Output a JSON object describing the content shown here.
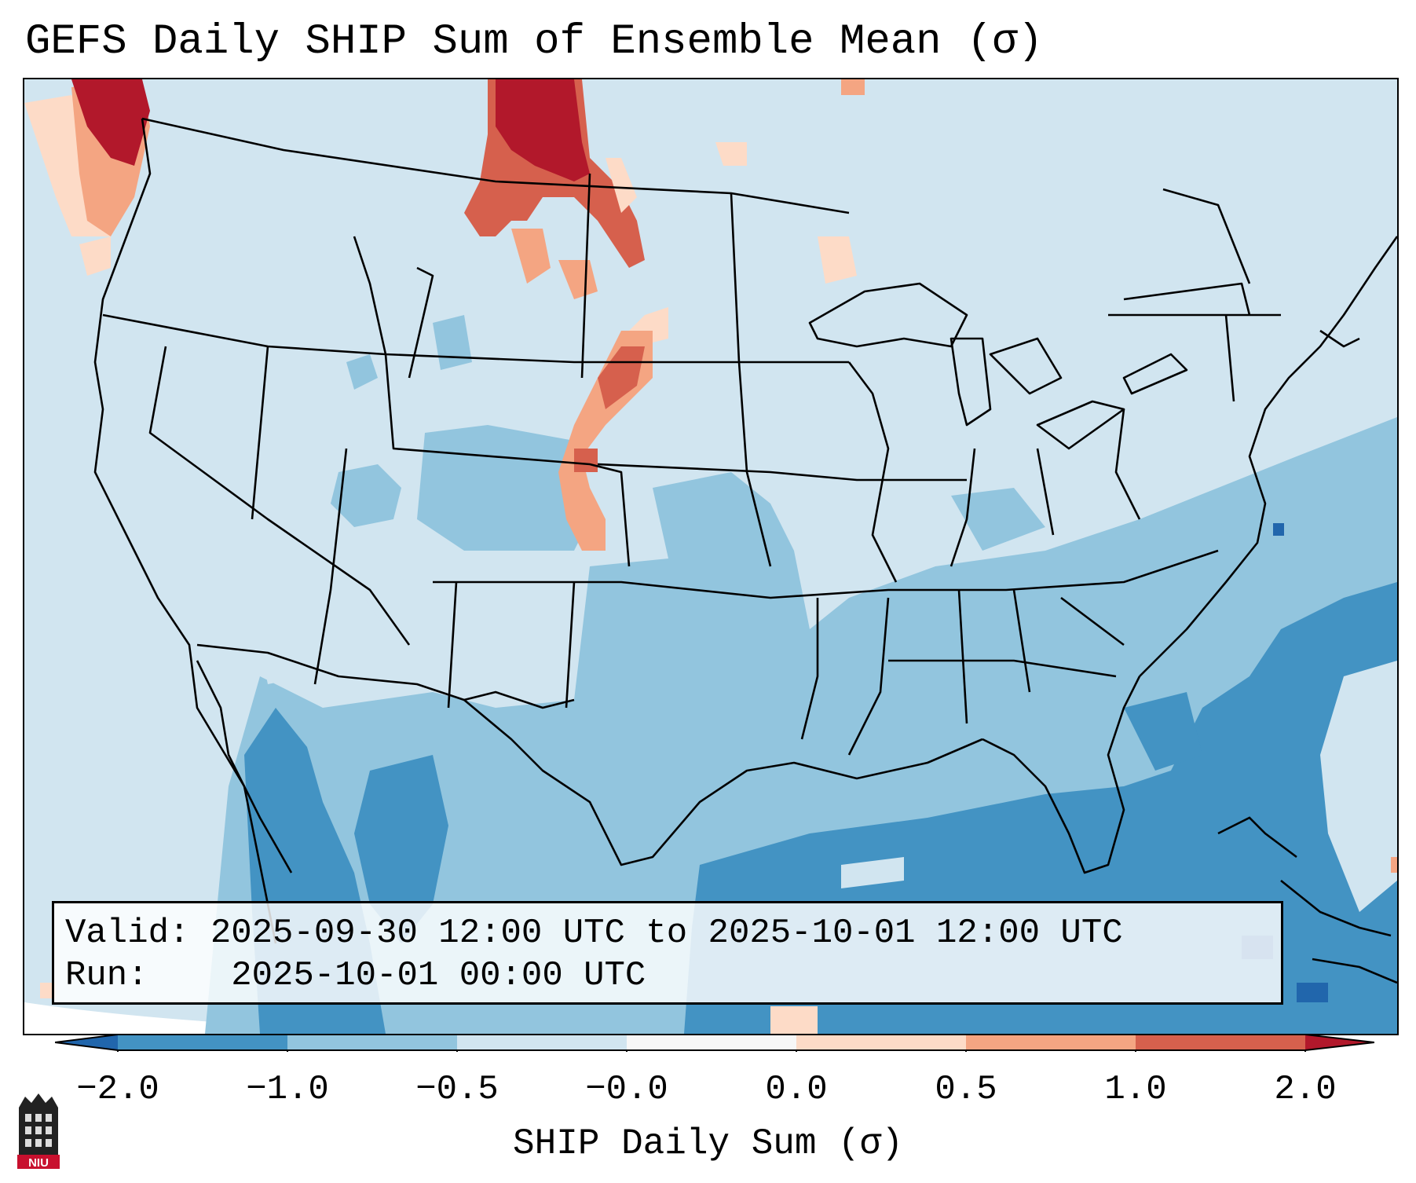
{
  "title": "GEFS Daily SHIP Sum of Ensemble Mean (σ)",
  "info": {
    "valid_label": "Valid:",
    "valid_value": "2025-09-30 12:00 UTC to 2025-10-01 12:00 UTC",
    "run_label": "Run:",
    "run_value": "2025-10-01 00:00 UTC"
  },
  "colorbar": {
    "label": "SHIP Daily Sum (σ)",
    "tick_labels": [
      "−2.0",
      "−1.0",
      "−0.5",
      "−0.0",
      "0.0",
      "0.5",
      "1.0",
      "2.0"
    ],
    "colors": [
      "#2166ac",
      "#4393c3",
      "#92c5de",
      "#d1e5f0",
      "#fddbc7",
      "#f4a582",
      "#d6604d",
      "#b2182b"
    ],
    "extend": "both"
  },
  "map": {
    "region": "Contiguous United States",
    "ocean_fill": "#d1e5f0"
  },
  "logo": {
    "text": "NIU",
    "color": "#c8102e"
  }
}
